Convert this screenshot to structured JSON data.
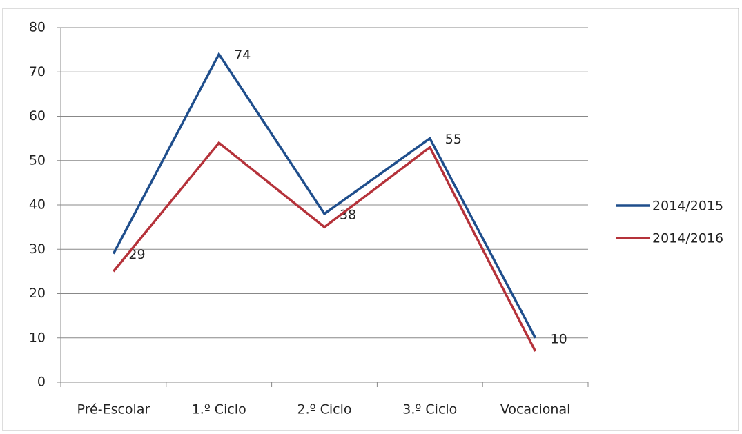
{
  "chart_data": {
    "type": "line",
    "categories": [
      "Pré-Escolar",
      "1.º Ciclo",
      "2.º Ciclo",
      "3.º Ciclo",
      "Vocacional"
    ],
    "series": [
      {
        "name": "2014/2015",
        "color": "#1f4e8c",
        "values": [
          29,
          74,
          38,
          55,
          10
        ],
        "data_labels": true
      },
      {
        "name": "2014/2016",
        "color": "#b5323a",
        "values": [
          25,
          54,
          35,
          53,
          7
        ],
        "data_labels": false
      }
    ],
    "ylim": [
      0,
      80
    ],
    "yticks": [
      0,
      10,
      20,
      30,
      40,
      50,
      60,
      70,
      80
    ],
    "grid": true,
    "legend": "right"
  }
}
